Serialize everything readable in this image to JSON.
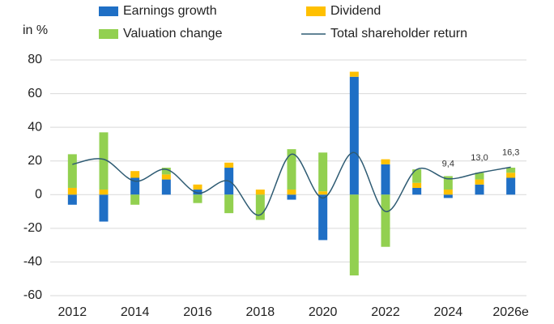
{
  "chart_data": {
    "type": "stacked_bar_line",
    "y_label": "in %",
    "categories": [
      "2012",
      null,
      "2014",
      null,
      "2016",
      null,
      "2018",
      null,
      "2020",
      null,
      "2022",
      null,
      "2024",
      null,
      "2026e"
    ],
    "series": [
      {
        "name": "Earnings growth",
        "color": "#1f6fc5",
        "kind": "bar",
        "values": [
          -6,
          -16,
          10,
          9,
          3,
          16,
          0,
          -3,
          -27,
          70,
          18,
          4,
          -2,
          6,
          10
        ]
      },
      {
        "name": "Dividend",
        "color": "#ffc000",
        "kind": "bar",
        "values": [
          4,
          3,
          4,
          3,
          3,
          3,
          3,
          3,
          2,
          3,
          3,
          3,
          3,
          3,
          3
        ]
      },
      {
        "name": "Valuation change",
        "color": "#92d050",
        "kind": "bar",
        "values": [
          20,
          34,
          -6,
          4,
          -5,
          -11,
          -15,
          24,
          23,
          -48,
          -31,
          8,
          8,
          4,
          3
        ]
      },
      {
        "name": "Total shareholder return",
        "color": "#2e5b73",
        "kind": "line",
        "values": [
          18,
          21,
          8,
          15,
          1,
          8,
          -12,
          24,
          -2,
          25,
          -10,
          15,
          9.4,
          13.0,
          16.3
        ],
        "value_labels": [
          null,
          null,
          null,
          null,
          null,
          null,
          null,
          null,
          null,
          null,
          null,
          null,
          "9,4",
          "13,0",
          "16,3"
        ]
      }
    ],
    "ylim": [
      -60,
      80
    ],
    "yticks": [
      -60,
      -40,
      -20,
      0,
      20,
      40,
      60,
      80
    ],
    "grid": true
  }
}
